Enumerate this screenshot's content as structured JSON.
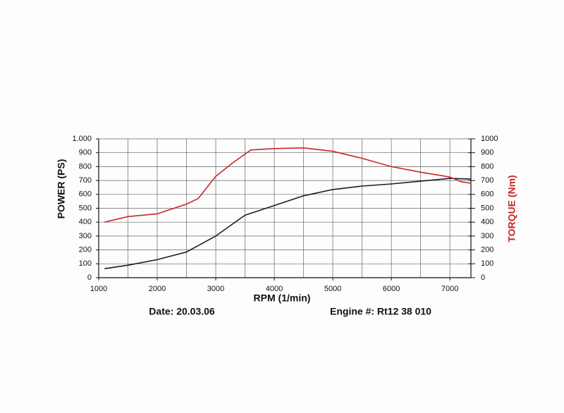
{
  "chart_data": {
    "type": "line",
    "x_label": "RPM (1/min)",
    "y_label": "POWER (PS)",
    "y2_label": "TORQUE (Nm)",
    "annotations": [
      "Date: 20.03.06",
      "Engine #: Rt12 38 010"
    ],
    "xlim": [
      1000,
      7360
    ],
    "xticks": [
      1000,
      2000,
      3000,
      4000,
      5000,
      6000,
      7000
    ],
    "xminor": [
      1500,
      2500,
      3500,
      4500,
      5500,
      6500
    ],
    "ylim": [
      0,
      1000
    ],
    "yticks": [
      0,
      100,
      200,
      300,
      400,
      500,
      600,
      700,
      800,
      900,
      {
        "value": 1000,
        "label": "1.000"
      }
    ],
    "y2lim": [
      0,
      1000
    ],
    "y2ticks": [
      0,
      100,
      200,
      300,
      400,
      500,
      600,
      700,
      800,
      900,
      1000
    ],
    "grid": true,
    "series": [
      {
        "name": "POWER (PS)",
        "color": "#1a1a2e",
        "x": [
          1100,
          1500,
          2000,
          2500,
          3000,
          3500,
          4000,
          4500,
          5000,
          5500,
          6000,
          6500,
          7000,
          7360
        ],
        "values": [
          65,
          90,
          130,
          185,
          300,
          450,
          520,
          590,
          635,
          660,
          675,
          695,
          715,
          710
        ]
      },
      {
        "name": "TORQUE (Nm)",
        "color": "#c8282a",
        "axis": "y2",
        "x": [
          1100,
          1500,
          2000,
          2500,
          2700,
          3000,
          3300,
          3600,
          4000,
          4500,
          5000,
          5500,
          6000,
          6500,
          7000,
          7200,
          7360
        ],
        "values": [
          400,
          440,
          460,
          530,
          570,
          730,
          830,
          920,
          930,
          935,
          910,
          860,
          800,
          760,
          725,
          690,
          680
        ]
      }
    ]
  }
}
